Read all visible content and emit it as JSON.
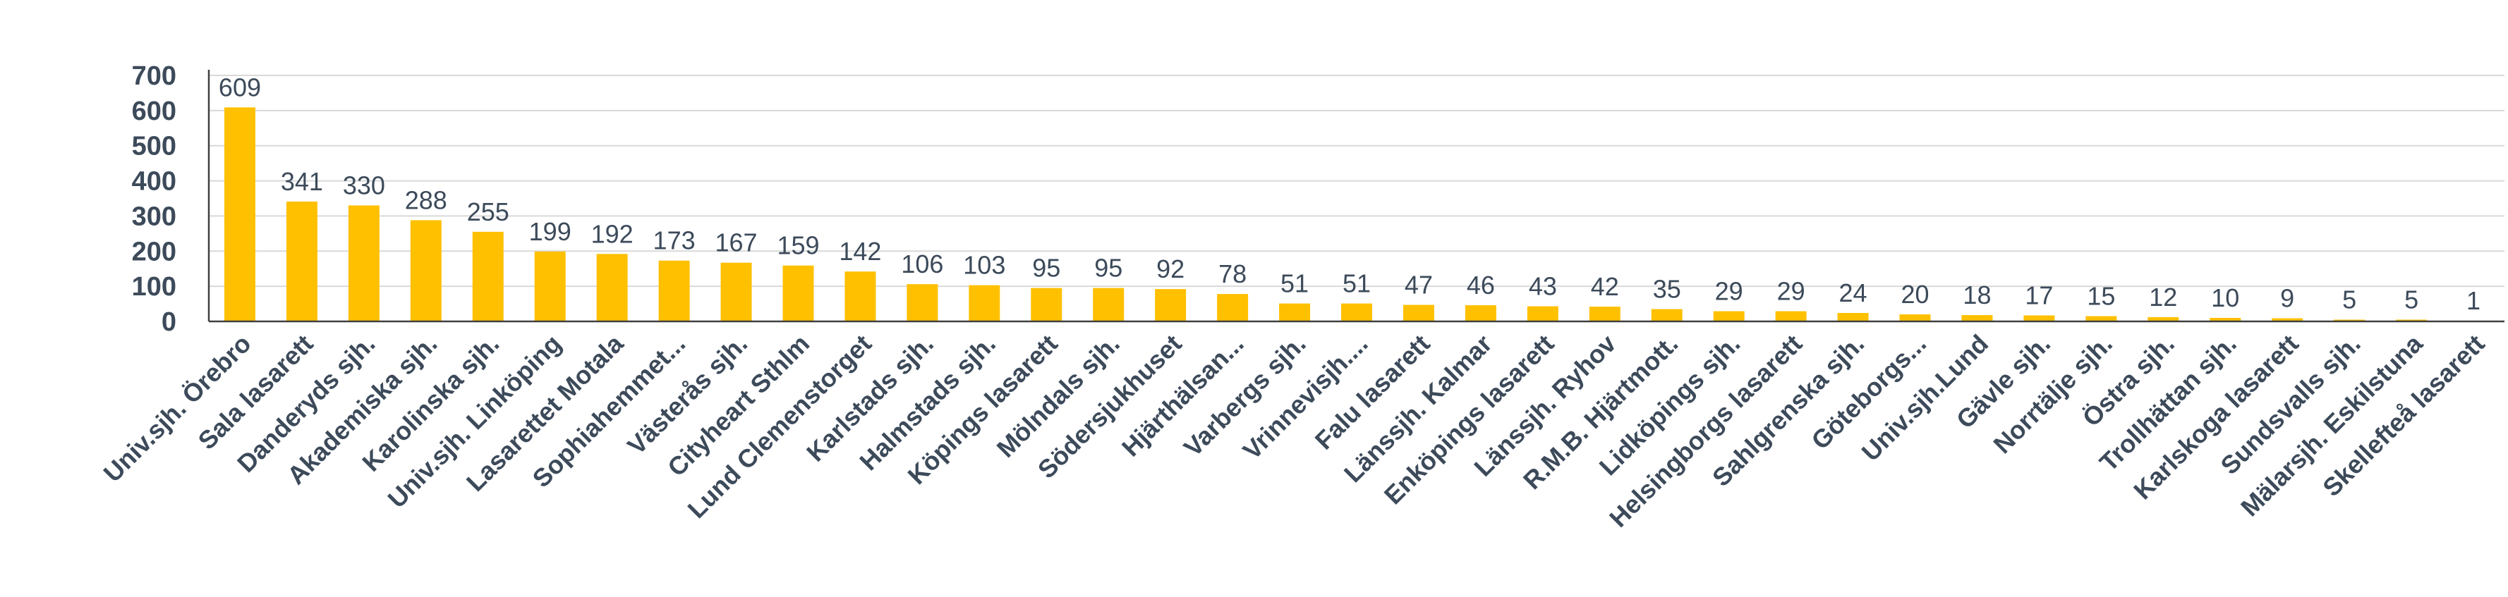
{
  "chart_data": {
    "type": "bar",
    "title": "",
    "xlabel": "",
    "ylabel": "",
    "ylim": [
      0,
      700
    ],
    "yticks": [
      0,
      100,
      200,
      300,
      400,
      500,
      600,
      700
    ],
    "grid": true,
    "bar_color": "#ffc000",
    "categories": [
      "Univ.sjh. Örebro",
      "Sala lasarett",
      "Danderyds sjh.",
      "Akademiska sjh.",
      "Karolinska sjh.",
      "Univ.sjh. Linköping",
      "Lasarettet Motala",
      "Sophiahemmet...",
      "Västerås sjh.",
      "Cityheart Sthlm",
      "Lund Clemenstorget",
      "Karlstads sjh.",
      "Halmstads sjh.",
      "Köpings lasarett",
      "Mölndals sjh.",
      "Södersjukhuset",
      "Hjärthälsan...",
      "Varbergs sjh.",
      "Vrinnevisjh....",
      "Falu lasarett",
      "Länssjh. Kalmar",
      "Enköpings lasarett",
      "Länssjh. Ryhov",
      "R.M.B. Hjärtmott.",
      "Lidköpings sjh.",
      "Helsingborgs lasarett",
      "Sahlgrenska sjh.",
      "Göteborgs...",
      "Univ.sjh.Lund",
      "Gävle sjh.",
      "Norrtälje sjh.",
      "Östra sjh.",
      "Trollhättan sjh.",
      "Karlskoga lasarett",
      "Sundsvalls sjh.",
      "Mälarsjh. Eskilstuna",
      "Skellefteå lasarett"
    ],
    "values": [
      609,
      341,
      330,
      288,
      255,
      199,
      192,
      173,
      167,
      159,
      142,
      106,
      103,
      95,
      95,
      92,
      78,
      51,
      51,
      47,
      46,
      43,
      42,
      35,
      29,
      29,
      24,
      20,
      18,
      17,
      15,
      12,
      10,
      9,
      5,
      5,
      1
    ]
  }
}
